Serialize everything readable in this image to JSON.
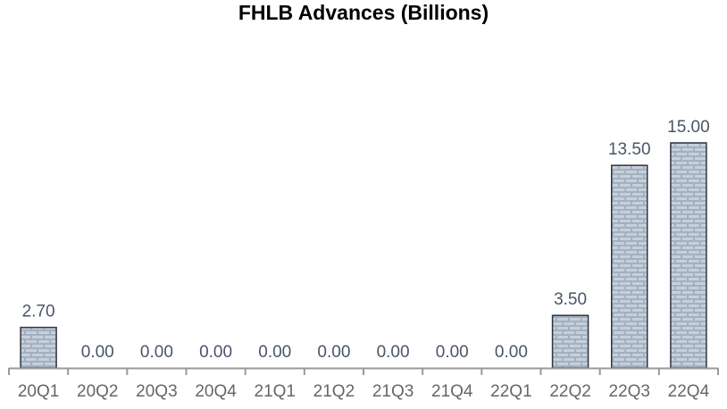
{
  "chart_data": {
    "type": "bar",
    "title": "FHLB Advances (Billions)",
    "xlabel": "",
    "ylabel": "",
    "categories": [
      "20Q1",
      "20Q2",
      "20Q3",
      "20Q4",
      "21Q1",
      "21Q2",
      "21Q3",
      "21Q4",
      "22Q1",
      "22Q2",
      "22Q3",
      "22Q4"
    ],
    "values": [
      2.7,
      0.0,
      0.0,
      0.0,
      0.0,
      0.0,
      0.0,
      0.0,
      0.0,
      3.5,
      13.5,
      15.0
    ],
    "value_labels": [
      "2.70",
      "0.00",
      "0.00",
      "0.00",
      "0.00",
      "0.00",
      "0.00",
      "0.00",
      "0.00",
      "3.50",
      "13.50",
      "15.00"
    ],
    "ylim": [
      0,
      15
    ],
    "grid": false,
    "legend": "none",
    "colors": {
      "bar_fill": "#a3b0c0",
      "bar_pattern": "#c6cfda",
      "bar_stroke": "#2e3440",
      "axis": "#999999",
      "value_text": "#4a5568",
      "tick_text": "#666666",
      "title_text": "#000000"
    }
  }
}
